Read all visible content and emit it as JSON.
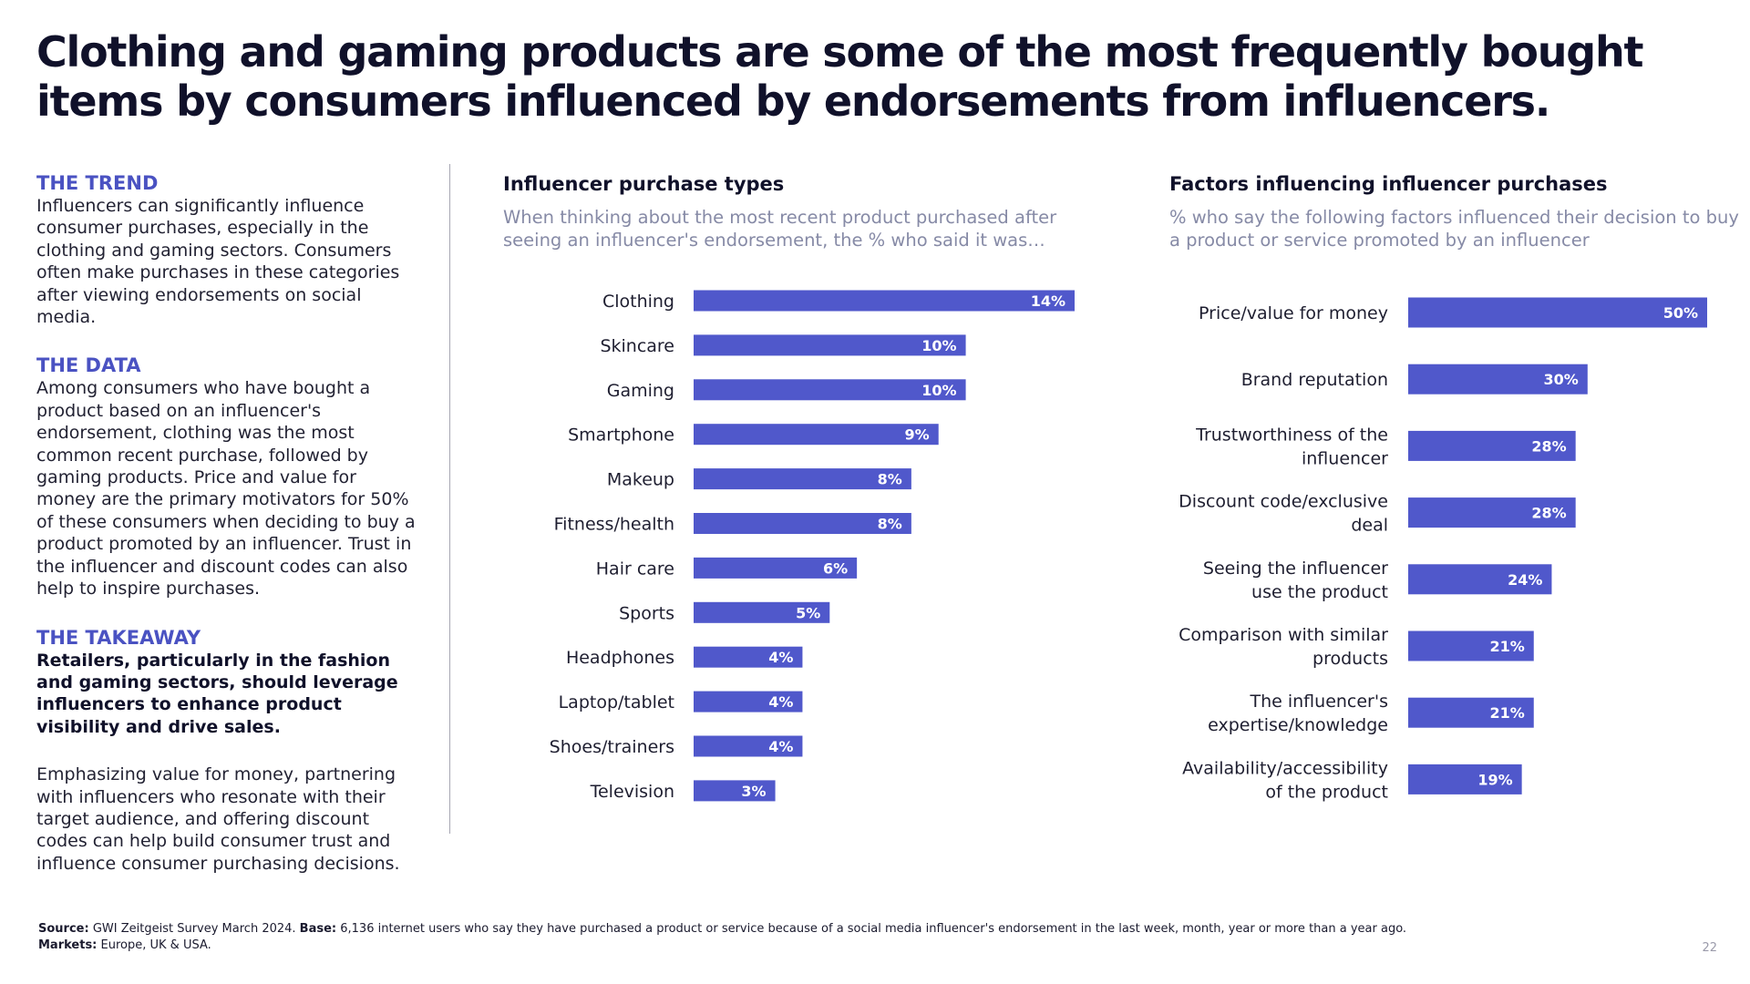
{
  "title": "Clothing and gaming products are some of the most frequently bought items by consumers influenced by endorsements from influencers.",
  "left": {
    "trend_heading": "THE TREND",
    "trend_text": "Influencers can significantly influence consumer purchases, especially in the clothing and gaming sectors. Consumers often make purchases in these categories after viewing endorsements on social media.",
    "data_heading": "THE DATA",
    "data_text": "Among consumers who have bought a product based on an influencer's endorsement, clothing was the most common recent purchase, followed by gaming products. Price and value for money are the primary motivators for 50% of these consumers when deciding to buy a product promoted by an influencer. Trust in the influencer and discount codes can also help to inspire purchases.",
    "takeaway_heading": "THE TAKEAWAY",
    "takeaway_bold": "Retailers, particularly in the fashion and gaming sectors, should leverage influencers to enhance product visibility and drive sales.",
    "takeaway_text": "Emphasizing value for money, partnering with influencers who resonate with their target audience, and offering discount codes can help build consumer trust and influence consumer purchasing decisions."
  },
  "colors": {
    "bar": "#5058cb",
    "accent": "#4a52c2",
    "bar_label": "#ffffff"
  },
  "chart_data": [
    {
      "type": "bar",
      "orientation": "horizontal",
      "title": "Influencer purchase types",
      "subtitle": "When thinking about the most recent product purchased after seeing an influencer's endorsement, the % who said it was…",
      "categories": [
        "Clothing",
        "Skincare",
        "Gaming",
        "Smartphone",
        "Makeup",
        "Fitness/health",
        "Hair care",
        "Sports",
        "Headphones",
        "Laptop/tablet",
        "Shoes/trainers",
        "Television"
      ],
      "values": [
        14,
        10,
        10,
        9,
        8,
        8,
        6,
        5,
        4,
        4,
        4,
        3
      ],
      "value_suffix": "%",
      "xlim": [
        0,
        14
      ],
      "grid": false
    },
    {
      "type": "bar",
      "orientation": "horizontal",
      "title": "Factors influencing influencer purchases",
      "subtitle": "% who say the following factors influenced their decision to buy a product or service promoted by an influencer",
      "categories": [
        [
          "Price/value for money"
        ],
        [
          "Brand reputation"
        ],
        [
          "Trustworthiness of the",
          "influencer"
        ],
        [
          "Discount code/exclusive",
          "deal"
        ],
        [
          "Seeing the influencer",
          "use the product"
        ],
        [
          "Comparison with similar",
          "products"
        ],
        [
          "The influencer's",
          "expertise/knowledge"
        ],
        [
          "Availability/accessibility",
          "of the product"
        ]
      ],
      "values": [
        50,
        30,
        28,
        28,
        24,
        21,
        21,
        19
      ],
      "value_suffix": "%",
      "xlim": [
        0,
        50
      ],
      "grid": false
    }
  ],
  "footer": {
    "source_label": "Source:",
    "source_text": "GWI Zeitgeist Survey March 2024.",
    "base_label": "Base:",
    "base_text": "6,136 internet users who say they have purchased a product or service because of a social media influencer's endorsement in the last week, month, year or more than a year ago.",
    "markets_label": "Markets:",
    "markets_text": "Europe, UK & USA."
  },
  "page_number": "22"
}
